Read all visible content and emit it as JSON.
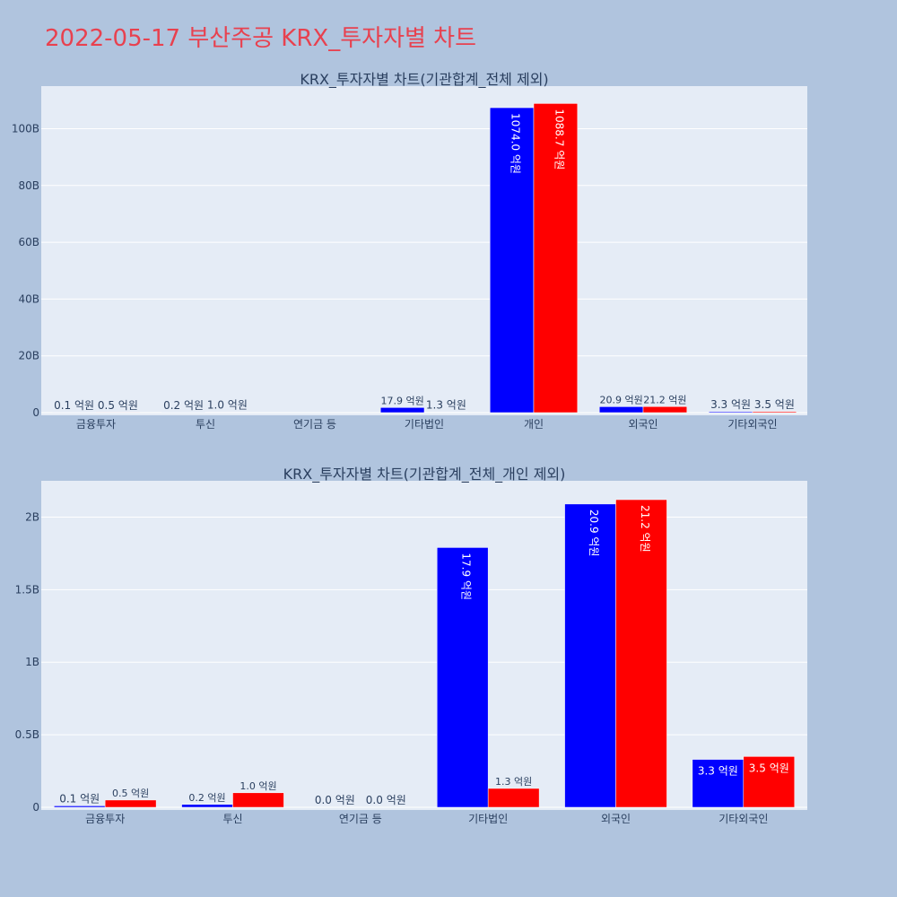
{
  "page": {
    "title": "2022-05-17 부산주공 KRX_투자자별 차트"
  },
  "colors": {
    "background": "#b0c4de",
    "plot_bg": "#e5ecf6",
    "grid": "#ffffff",
    "series_a": "#0000ff",
    "series_b": "#ff0000",
    "title": "#e8414f"
  },
  "chart_data": [
    {
      "type": "bar",
      "title": "KRX_투자자별 차트(기관합계_전체 제외)",
      "categories": [
        "금융투자",
        "투신",
        "연기금 등",
        "기타법인",
        "개인",
        "외국인",
        "기타외국인"
      ],
      "ylim": [
        0,
        115
      ],
      "yticks": [
        0,
        20,
        40,
        60,
        80,
        100
      ],
      "ytick_labels": [
        "0",
        "20B",
        "40B",
        "60B",
        "80B",
        "100B"
      ],
      "grid": true,
      "series": [
        {
          "color": "#0000ff",
          "values": [
            0.01,
            0.02,
            0,
            1.79,
            107.4,
            2.09,
            0.33
          ],
          "labels": [
            "0.1 억원",
            "0.2 억원",
            "",
            "17.9 억원",
            "1074.0 억원",
            "20.9 억원",
            "3.3 억원"
          ]
        },
        {
          "color": "#ff0000",
          "values": [
            0.05,
            0.1,
            0,
            0.13,
            108.87,
            2.12,
            0.35
          ],
          "labels": [
            "0.5 억원",
            "1.0 억원",
            "",
            "1.3 억원",
            "1088.7 억원",
            "21.2 억원",
            "3.5 억원"
          ]
        }
      ]
    },
    {
      "type": "bar",
      "title": "KRX_투자자별 차트(기관합계_전체_개인 제외)",
      "categories": [
        "금융투자",
        "투신",
        "연기금 등",
        "기타법인",
        "외국인",
        "기타외국인"
      ],
      "ylim": [
        0,
        2.25
      ],
      "yticks": [
        0,
        0.5,
        1,
        1.5,
        2
      ],
      "ytick_labels": [
        "0",
        "0.5B",
        "1B",
        "1.5B",
        "2B"
      ],
      "grid": true,
      "series": [
        {
          "color": "#0000ff",
          "values": [
            0.01,
            0.02,
            0,
            1.79,
            2.09,
            0.33
          ],
          "labels": [
            "0.1 억원",
            "0.2 억원",
            "0.0 억원",
            "17.9 억원",
            "20.9 억원",
            "3.3 억원"
          ]
        },
        {
          "color": "#ff0000",
          "values": [
            0.05,
            0.1,
            0,
            0.13,
            2.12,
            0.35
          ],
          "labels": [
            "0.5 억원",
            "1.0 억원",
            "0.0 억원",
            "1.3 억원",
            "21.2 억원",
            "3.5 억원"
          ]
        }
      ]
    }
  ]
}
